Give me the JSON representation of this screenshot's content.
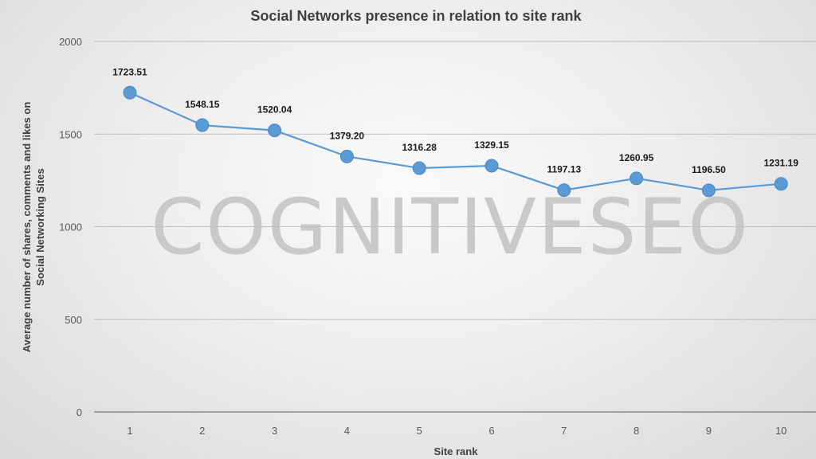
{
  "watermark": "COGNITIVESEO",
  "chart_data": {
    "type": "line",
    "title": "Social Networks presence in relation to site rank",
    "xlabel": "Site rank",
    "ylabel_lines": [
      "Average number of shares, comments and likes on",
      "Social Networking Sites"
    ],
    "categories": [
      "1",
      "2",
      "3",
      "4",
      "5",
      "6",
      "7",
      "8",
      "9",
      "10"
    ],
    "values": [
      1723.51,
      1548.15,
      1520.04,
      1379.2,
      1316.28,
      1329.15,
      1197.13,
      1260.95,
      1196.5,
      1231.19
    ],
    "data_labels": [
      "1723.51",
      "1548.15",
      "1520.04",
      "1379.20",
      "1316.28",
      "1329.15",
      "1197.13",
      "1260.95",
      "1196.50",
      "1231.19"
    ],
    "yticks": [
      "0",
      "500",
      "1000",
      "1500",
      "2000"
    ],
    "ylim": [
      0,
      2000
    ],
    "grid": true,
    "legend": "none",
    "line_color": "#5b9bd5",
    "marker_color": "#5b9bd5",
    "grid_color": "#bfbfbf"
  }
}
